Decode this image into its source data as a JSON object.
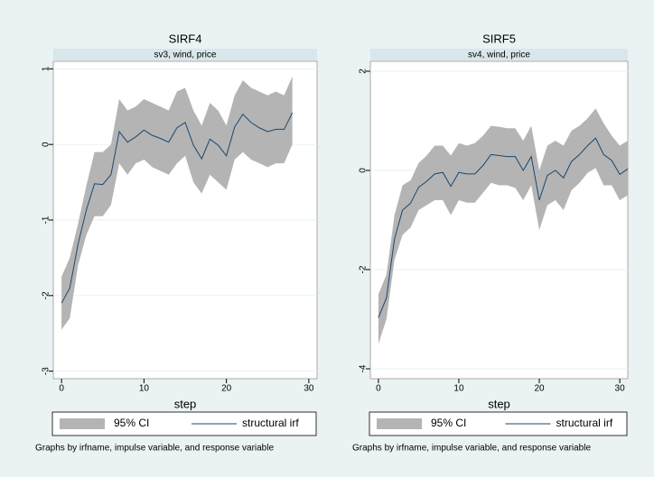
{
  "chart_data": [
    {
      "type": "line",
      "title": "SIRF4",
      "subtitle": "sv3, wind, price",
      "xlabel": "step",
      "x": [
        0,
        1,
        2,
        3,
        4,
        5,
        6,
        7,
        8,
        9,
        10,
        11,
        12,
        13,
        14,
        15,
        16,
        17,
        18,
        19,
        20,
        21,
        22,
        23,
        24,
        25,
        26,
        27,
        28
      ],
      "series": [
        {
          "name": "95% CI",
          "color": "#b4b4b4",
          "upper": [
            -1.75,
            -1.5,
            -1.05,
            -0.55,
            -0.1,
            -0.1,
            0.0,
            0.6,
            0.45,
            0.5,
            0.6,
            0.55,
            0.5,
            0.45,
            0.7,
            0.75,
            0.45,
            0.25,
            0.55,
            0.45,
            0.25,
            0.65,
            0.85,
            0.75,
            0.7,
            0.65,
            0.7,
            0.65,
            0.9
          ],
          "lower": [
            -2.45,
            -2.3,
            -1.6,
            -1.2,
            -0.95,
            -0.95,
            -0.8,
            -0.25,
            -0.4,
            -0.25,
            -0.2,
            -0.3,
            -0.35,
            -0.4,
            -0.25,
            -0.15,
            -0.5,
            -0.65,
            -0.4,
            -0.5,
            -0.6,
            -0.2,
            -0.1,
            -0.2,
            -0.25,
            -0.3,
            -0.25,
            -0.25,
            0.0
          ]
        },
        {
          "name": "structural irf",
          "color": "#1a476f",
          "values": [
            -2.1,
            -1.9,
            -1.32,
            -0.87,
            -0.52,
            -0.53,
            -0.4,
            0.17,
            0.03,
            0.1,
            0.19,
            0.12,
            0.08,
            0.03,
            0.22,
            0.29,
            -0.01,
            -0.19,
            0.07,
            -0.01,
            -0.15,
            0.23,
            0.4,
            0.29,
            0.22,
            0.17,
            0.2,
            0.2,
            0.42
          ]
        }
      ],
      "xlim": [
        -1,
        31
      ],
      "xticks": [
        0,
        10,
        20,
        30
      ],
      "ylim": [
        -3.1,
        1.1
      ],
      "yticks": [
        -3,
        -2,
        -1,
        0,
        1
      ],
      "grid": true,
      "note": "Graphs by irfname, impulse variable, and response variable"
    },
    {
      "type": "line",
      "title": "SIRF5",
      "subtitle": "sv4, wind, price",
      "xlabel": "step",
      "x": [
        0,
        1,
        2,
        3,
        4,
        5,
        6,
        7,
        8,
        9,
        10,
        11,
        12,
        13,
        14,
        15,
        16,
        17,
        18,
        19,
        20,
        21,
        22,
        23,
        24,
        25,
        26,
        27,
        28,
        29,
        30,
        31
      ],
      "series": [
        {
          "name": "95% CI",
          "color": "#b4b4b4",
          "upper": [
            -2.5,
            -2.1,
            -0.9,
            -0.3,
            -0.2,
            0.15,
            0.3,
            0.5,
            0.5,
            0.3,
            0.55,
            0.5,
            0.55,
            0.7,
            0.9,
            0.88,
            0.85,
            0.85,
            0.6,
            0.9,
            0.0,
            0.5,
            0.6,
            0.5,
            0.8,
            0.9,
            1.05,
            1.25,
            0.95,
            0.7,
            0.5,
            0.6
          ],
          "lower": [
            -3.5,
            -3.0,
            -1.8,
            -1.3,
            -1.15,
            -0.8,
            -0.7,
            -0.6,
            -0.6,
            -0.9,
            -0.6,
            -0.65,
            -0.65,
            -0.45,
            -0.25,
            -0.3,
            -0.3,
            -0.35,
            -0.6,
            -0.3,
            -1.2,
            -0.7,
            -0.6,
            -0.8,
            -0.4,
            -0.25,
            -0.05,
            0.05,
            -0.3,
            -0.3,
            -0.6,
            -0.5
          ]
        },
        {
          "name": "structural irf",
          "color": "#1a476f",
          "values": [
            -2.97,
            -2.57,
            -1.38,
            -0.8,
            -0.66,
            -0.34,
            -0.22,
            -0.07,
            -0.04,
            -0.32,
            -0.04,
            -0.07,
            -0.07,
            0.1,
            0.32,
            0.3,
            0.28,
            0.28,
            0.0,
            0.28,
            -0.6,
            -0.1,
            0.0,
            -0.15,
            0.18,
            0.32,
            0.5,
            0.65,
            0.32,
            0.2,
            -0.08,
            0.03
          ]
        }
      ],
      "xlim": [
        -1,
        31
      ],
      "xticks": [
        0,
        10,
        20,
        30
      ],
      "ylim": [
        -4.2,
        2.2
      ],
      "yticks": [
        -4,
        -2,
        0,
        2
      ],
      "grid": true,
      "note": "Graphs by irfname, impulse variable, and response variable"
    }
  ]
}
